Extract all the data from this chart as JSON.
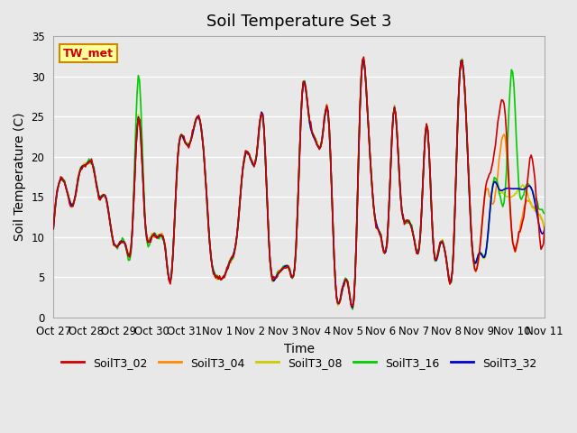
{
  "title": "Soil Temperature Set 3",
  "xlabel": "Time",
  "ylabel": "Soil Temperature (C)",
  "ylim": [
    0,
    35
  ],
  "annotation": "TW_met",
  "series_colors": {
    "SoilT3_02": "#cc0000",
    "SoilT3_04": "#ff8800",
    "SoilT3_08": "#cccc00",
    "SoilT3_16": "#00cc00",
    "SoilT3_32": "#0000cc"
  },
  "x_tick_labels": [
    "Oct 27",
    "Oct 28",
    "Oct 29",
    "Oct 30",
    "Oct 31",
    "Nov 1",
    "Nov 2",
    "Nov 3",
    "Nov 4",
    "Nov 5",
    "Nov 6",
    "Nov 7",
    "Nov 8",
    "Nov 9",
    "Nov 10",
    "Nov 11"
  ],
  "background_color": "#e8e8e8",
  "plot_bg_color": "#e8e8e8",
  "grid_color": "#ffffff",
  "linewidth": 1.2,
  "title_fontsize": 13,
  "axis_fontsize": 10,
  "tick_fontsize": 8.5,
  "legend_fontsize": 9
}
